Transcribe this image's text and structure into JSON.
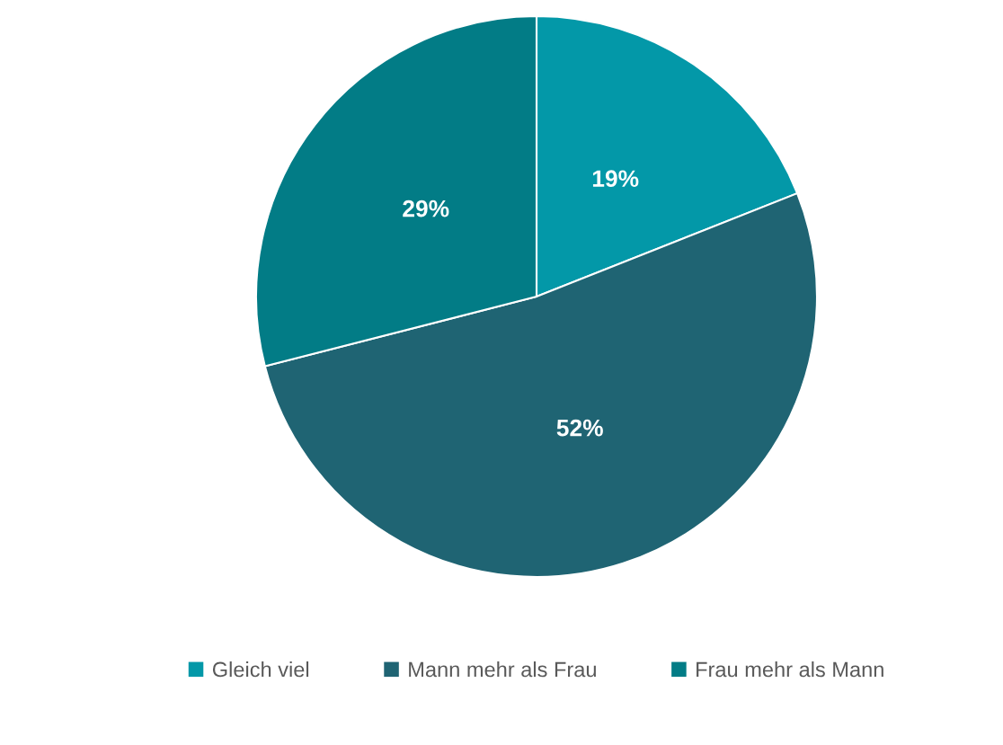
{
  "chart_data": {
    "type": "pie",
    "categories": [
      "Gleich viel",
      "Mann mehr als Frau",
      "Frau mehr als Mann"
    ],
    "values": [
      19,
      52,
      29
    ],
    "colors": [
      "#0398a8",
      "#1f6473",
      "#027c86"
    ],
    "value_labels": [
      "19%",
      "52%",
      "29%"
    ],
    "legend": "bottom"
  }
}
